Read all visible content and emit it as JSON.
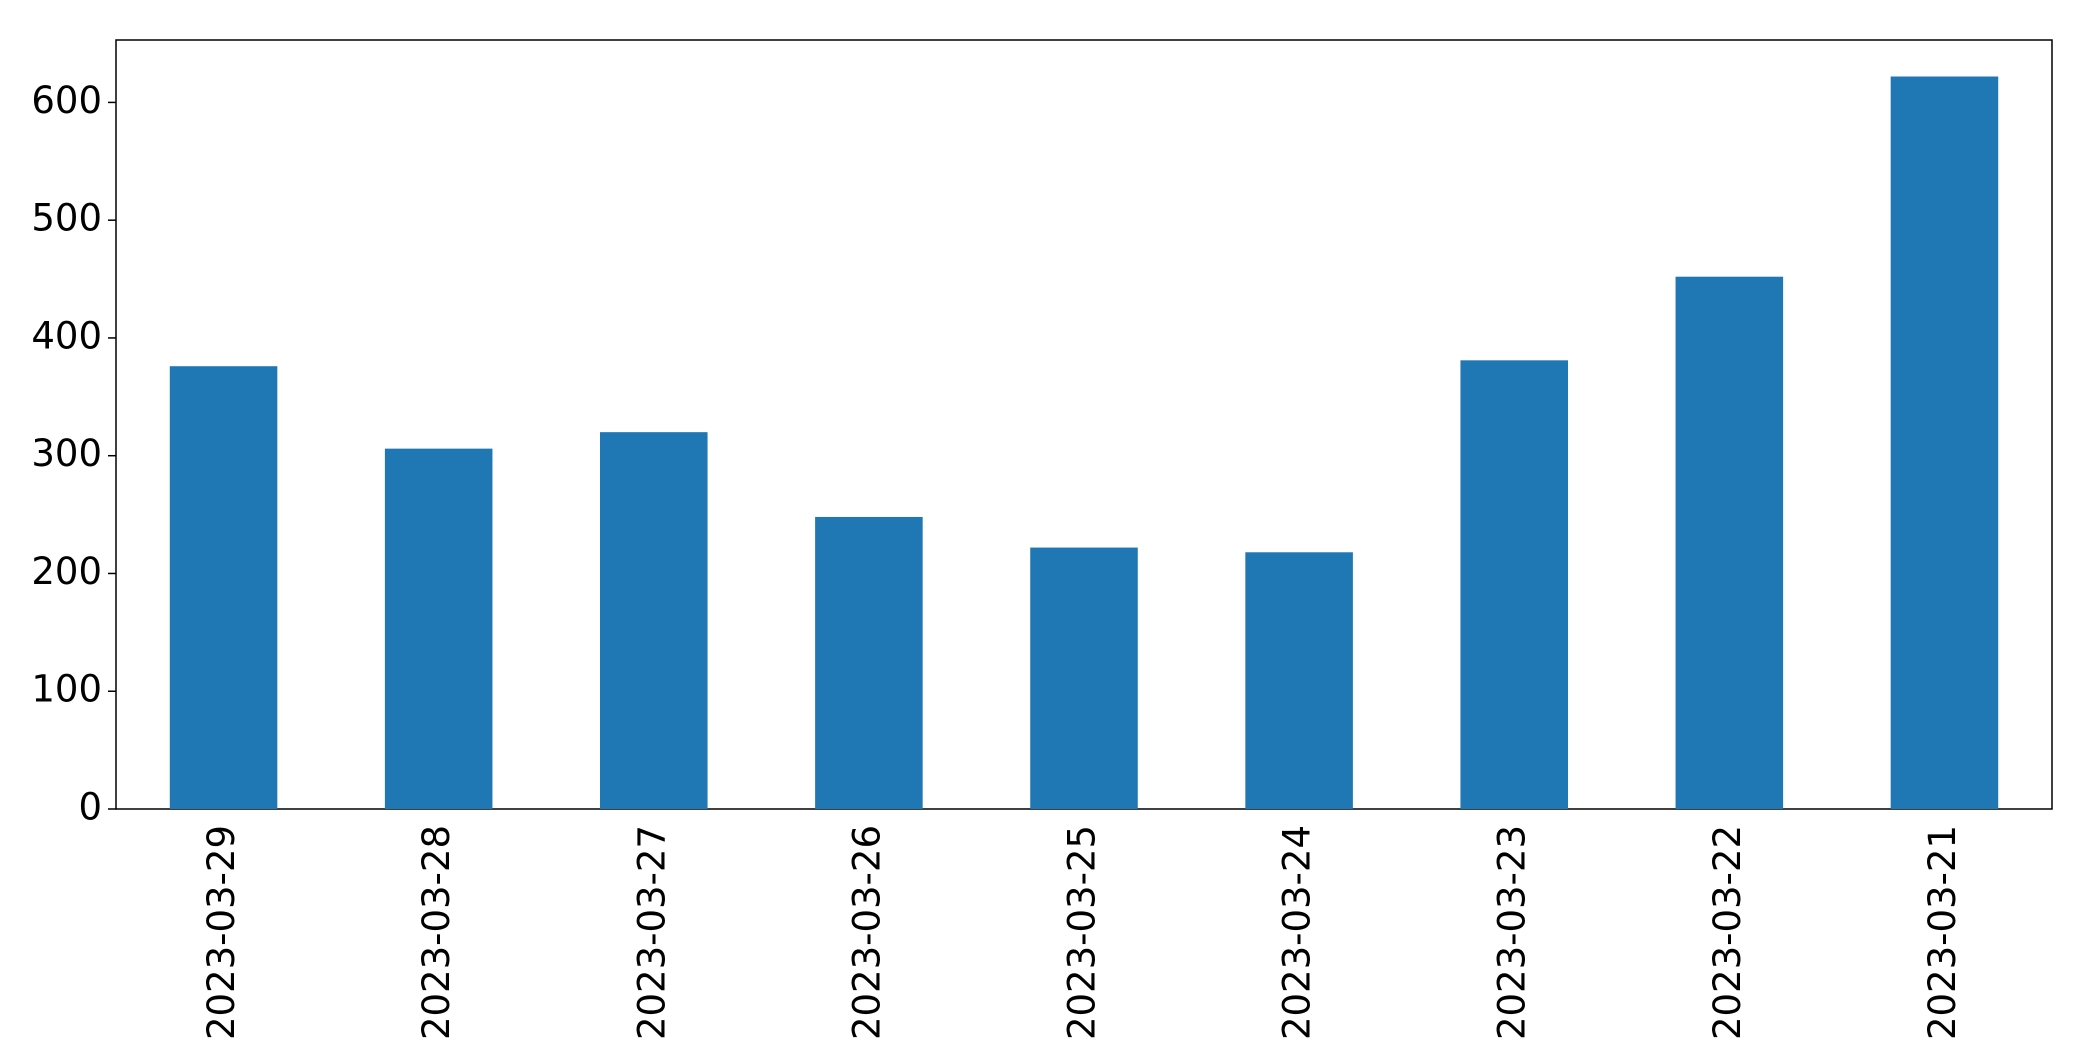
{
  "chart_data": {
    "type": "bar",
    "categories": [
      "2023-03-29",
      "2023-03-28",
      "2023-03-27",
      "2023-03-26",
      "2023-03-25",
      "2023-03-24",
      "2023-03-23",
      "2023-03-22",
      "2023-03-21"
    ],
    "values": [
      376,
      306,
      320,
      248,
      222,
      218,
      381,
      452,
      622
    ],
    "color": "#1f77b4",
    "ylim": [
      0,
      653
    ],
    "yticks": [
      0,
      100,
      200,
      300,
      400,
      500,
      600
    ],
    "grid": false
  }
}
